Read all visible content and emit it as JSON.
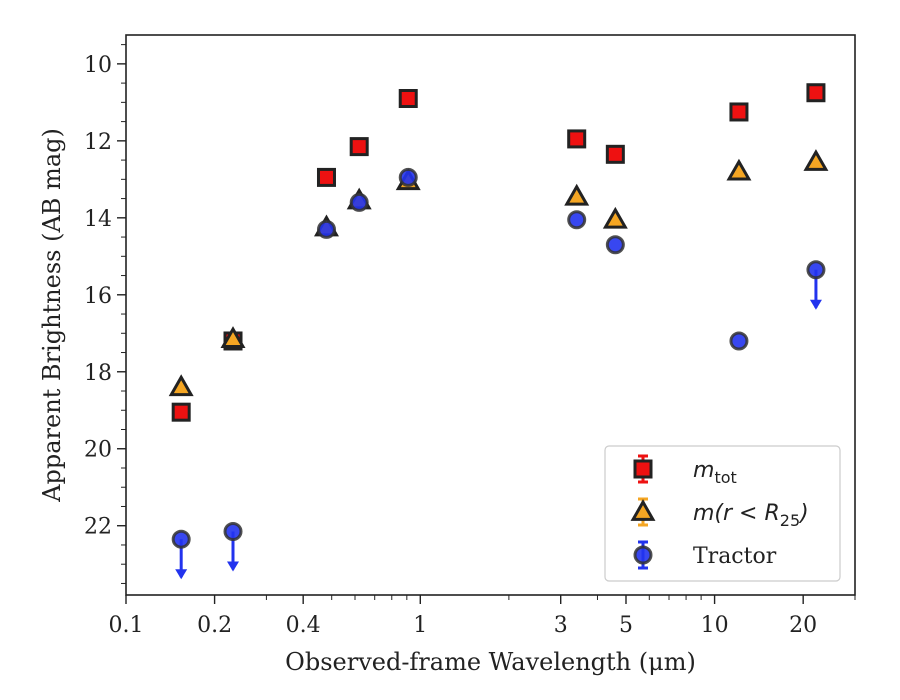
{
  "chart_data": {
    "type": "scatter",
    "xlabel": "Observed-frame Wavelength (μm)",
    "ylabel": "Apparent Brightness (AB mag)",
    "x_scale": "log",
    "y_inverted": true,
    "xlim": [
      0.1,
      30
    ],
    "ylim": [
      23.8,
      9.25
    ],
    "x_ticks": [
      0.1,
      0.2,
      0.4,
      1,
      3,
      5,
      10,
      20
    ],
    "x_tick_labels": [
      "0.1",
      "0.2",
      "0.4",
      "1",
      "3",
      "5",
      "10",
      "20"
    ],
    "y_ticks": [
      10,
      12,
      14,
      16,
      18,
      20,
      22
    ],
    "y_tick_labels": [
      "10",
      "12",
      "14",
      "16",
      "18",
      "20",
      "22"
    ],
    "legend_position": "lower right",
    "series": [
      {
        "legend_main": "m",
        "legend_sub": "tot",
        "marker": "square",
        "color": "#ee1111",
        "edge_color": "#222222",
        "points": [
          {
            "x": 0.154,
            "y": 19.05
          },
          {
            "x": 0.231,
            "y": 17.2
          },
          {
            "x": 0.48,
            "y": 12.95
          },
          {
            "x": 0.62,
            "y": 12.15
          },
          {
            "x": 0.91,
            "y": 10.9
          },
          {
            "x": 3.4,
            "y": 11.95
          },
          {
            "x": 4.6,
            "y": 12.35
          },
          {
            "x": 12.1,
            "y": 11.25
          },
          {
            "x": 22.1,
            "y": 10.75
          }
        ]
      },
      {
        "legend_main": "m(r < R",
        "legend_sub": "25",
        "legend_end": ")",
        "marker": "triangle",
        "color": "#f5a623",
        "edge_color": "#222222",
        "points": [
          {
            "x": 0.154,
            "y": 18.4
          },
          {
            "x": 0.231,
            "y": 17.15
          },
          {
            "x": 0.48,
            "y": 14.25
          },
          {
            "x": 0.62,
            "y": 13.55
          },
          {
            "x": 0.91,
            "y": 13.05
          },
          {
            "x": 3.4,
            "y": 13.45
          },
          {
            "x": 4.6,
            "y": 14.05
          },
          {
            "x": 12.1,
            "y": 12.8
          },
          {
            "x": 22.1,
            "y": 12.55
          }
        ]
      },
      {
        "legend_main": "Tractor",
        "marker": "circle",
        "color": "#2233ee",
        "edge_color": "#333333",
        "points": [
          {
            "x": 0.154,
            "y": 22.35,
            "upper_limit": true
          },
          {
            "x": 0.231,
            "y": 22.15,
            "upper_limit": true
          },
          {
            "x": 0.48,
            "y": 14.3
          },
          {
            "x": 0.62,
            "y": 13.6
          },
          {
            "x": 0.91,
            "y": 12.95
          },
          {
            "x": 3.4,
            "y": 14.05
          },
          {
            "x": 4.6,
            "y": 14.7
          },
          {
            "x": 12.1,
            "y": 17.2
          },
          {
            "x": 22.1,
            "y": 15.35,
            "upper_limit": true
          }
        ]
      }
    ]
  }
}
